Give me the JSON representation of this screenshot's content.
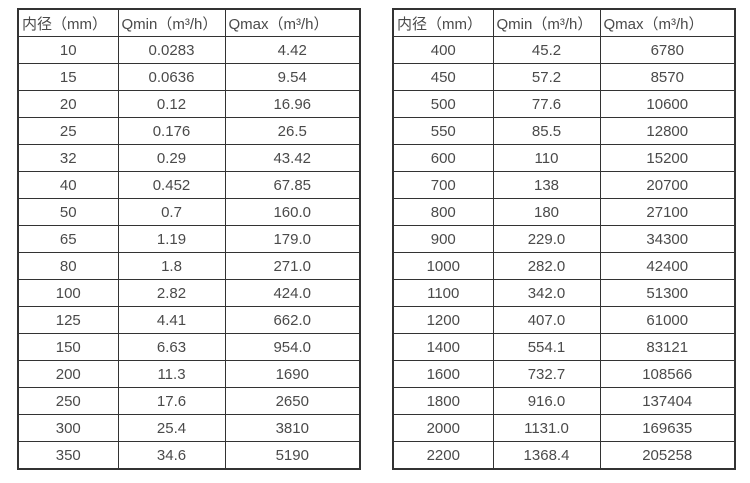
{
  "colors": {
    "background": "#ffffff",
    "border": "#333333",
    "text": "#4a4a4a"
  },
  "tables": [
    {
      "name": "flow-range-table-small-diameters",
      "headers": [
        "内径（mm）",
        "Qmin（m³/h）",
        "Qmax（m³/h）"
      ],
      "rows": [
        [
          "10",
          "0.0283",
          "4.42"
        ],
        [
          "15",
          "0.0636",
          "9.54"
        ],
        [
          "20",
          "0.12",
          "16.96"
        ],
        [
          "25",
          "0.176",
          "26.5"
        ],
        [
          "32",
          "0.29",
          "43.42"
        ],
        [
          "40",
          "0.452",
          "67.85"
        ],
        [
          "50",
          "0.7",
          "160.0"
        ],
        [
          "65",
          "1.19",
          "179.0"
        ],
        [
          "80",
          "1.8",
          "271.0"
        ],
        [
          "100",
          "2.82",
          "424.0"
        ],
        [
          "125",
          "4.41",
          "662.0"
        ],
        [
          "150",
          "6.63",
          "954.0"
        ],
        [
          "200",
          "11.3",
          "1690"
        ],
        [
          "250",
          "17.6",
          "2650"
        ],
        [
          "300",
          "25.4",
          "3810"
        ],
        [
          "350",
          "34.6",
          "5190"
        ]
      ]
    },
    {
      "name": "flow-range-table-large-diameters",
      "headers": [
        "内径（mm）",
        "Qmin（m³/h）",
        "Qmax（m³/h）"
      ],
      "rows": [
        [
          "400",
          "45.2",
          "6780"
        ],
        [
          "450",
          "57.2",
          "8570"
        ],
        [
          "500",
          "77.6",
          "10600"
        ],
        [
          "550",
          "85.5",
          "12800"
        ],
        [
          "600",
          "110",
          "15200"
        ],
        [
          "700",
          "138",
          "20700"
        ],
        [
          "800",
          "180",
          "27100"
        ],
        [
          "900",
          "229.0",
          "34300"
        ],
        [
          "1000",
          "282.0",
          "42400"
        ],
        [
          "1100",
          "342.0",
          "51300"
        ],
        [
          "1200",
          "407.0",
          "61000"
        ],
        [
          "1400",
          "554.1",
          "83121"
        ],
        [
          "1600",
          "732.7",
          "108566"
        ],
        [
          "1800",
          "916.0",
          "137404"
        ],
        [
          "2000",
          "1131.0",
          "169635"
        ],
        [
          "2200",
          "1368.4",
          "205258"
        ]
      ]
    }
  ]
}
